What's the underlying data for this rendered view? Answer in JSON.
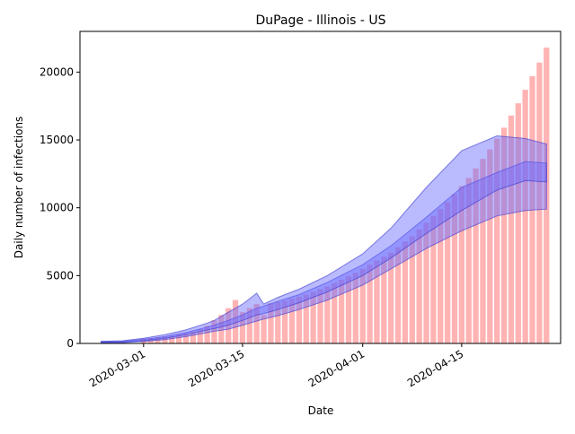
{
  "chart_data": {
    "type": "bar",
    "title": "DuPage - Illinois - US",
    "xlabel": "Date",
    "ylabel": "Daily number of infections",
    "x_ticks": [
      "2020-03-01",
      "2020-03-15",
      "2020-04-01",
      "2020-04-15"
    ],
    "y_ticks": [
      "0",
      "5000",
      "10000",
      "15000",
      "20000"
    ],
    "ylim": [
      0,
      23000
    ],
    "xlim": [
      "2020-02-21",
      "2020-04-29"
    ],
    "grid": false,
    "bar_color": "#ff9999",
    "band_color": "#6666ff",
    "bar_dates": [
      "2020-03-01",
      "2020-03-02",
      "2020-03-03",
      "2020-03-04",
      "2020-03-05",
      "2020-03-06",
      "2020-03-07",
      "2020-03-08",
      "2020-03-09",
      "2020-03-10",
      "2020-03-11",
      "2020-03-12",
      "2020-03-13",
      "2020-03-14",
      "2020-03-15",
      "2020-03-16",
      "2020-03-17",
      "2020-03-18",
      "2020-03-19",
      "2020-03-20",
      "2020-03-21",
      "2020-03-22",
      "2020-03-23",
      "2020-03-24",
      "2020-03-25",
      "2020-03-26",
      "2020-03-27",
      "2020-03-28",
      "2020-03-29",
      "2020-03-30",
      "2020-03-31",
      "2020-04-01",
      "2020-04-02",
      "2020-04-03",
      "2020-04-04",
      "2020-04-05",
      "2020-04-06",
      "2020-04-07",
      "2020-04-08",
      "2020-04-09",
      "2020-04-10",
      "2020-04-11",
      "2020-04-12",
      "2020-04-13",
      "2020-04-14",
      "2020-04-15",
      "2020-04-16",
      "2020-04-17",
      "2020-04-18",
      "2020-04-19",
      "2020-04-20",
      "2020-04-21",
      "2020-04-22",
      "2020-04-23",
      "2020-04-24",
      "2020-04-25",
      "2020-04-26"
    ],
    "values": [
      350,
      380,
      420,
      480,
      560,
      650,
      750,
      880,
      1050,
      1300,
      1700,
      2100,
      2600,
      3200,
      2300,
      2600,
      2900,
      2100,
      2950,
      3050,
      3150,
      3300,
      3450,
      3600,
      3800,
      4000,
      4200,
      4450,
      4700,
      4950,
      5200,
      5500,
      5800,
      6100,
      6400,
      6700,
      7100,
      7500,
      7900,
      8400,
      8900,
      9400,
      9900,
      10400,
      11000,
      11600,
      12200,
      12900,
      13600,
      14300,
      15100,
      15900,
      16800,
      17700,
      18700,
      19700,
      20700
    ],
    "bar_last": {
      "date": "2020-04-27",
      "value": 21800
    },
    "bands": [
      {
        "dates": [
          "2020-02-24",
          "2020-02-27",
          "2020-03-01",
          "2020-03-04",
          "2020-03-07",
          "2020-03-10",
          "2020-03-11",
          "2020-03-13",
          "2020-03-15",
          "2020-03-17",
          "2020-03-18",
          "2020-03-20",
          "2020-03-23",
          "2020-03-27",
          "2020-04-01",
          "2020-04-05",
          "2020-04-10",
          "2020-04-15",
          "2020-04-20",
          "2020-04-24",
          "2020-04-27"
        ],
        "lower": [
          50,
          60,
          150,
          280,
          500,
          800,
          900,
          1050,
          1350,
          1650,
          1800,
          2050,
          2500,
          3200,
          4300,
          5500,
          7000,
          8300,
          9400,
          9800,
          9900
        ],
        "upper": [
          130,
          150,
          300,
          500,
          800,
          1200,
          1350,
          1700,
          2100,
          2600,
          2750,
          3100,
          3600,
          4500,
          5800,
          7200,
          9300,
          11500,
          12600,
          13400,
          13300
        ]
      },
      {
        "dates": [
          "2020-02-24",
          "2020-02-27",
          "2020-03-01",
          "2020-03-04",
          "2020-03-07",
          "2020-03-10",
          "2020-03-11",
          "2020-03-13",
          "2020-03-15",
          "2020-03-17",
          "2020-03-18",
          "2020-03-20",
          "2020-03-23",
          "2020-03-27",
          "2020-04-01",
          "2020-04-05",
          "2020-04-10",
          "2020-04-15",
          "2020-04-20",
          "2020-04-24",
          "2020-04-27"
        ],
        "lower": [
          80,
          100,
          200,
          380,
          640,
          1000,
          1100,
          1350,
          1700,
          2100,
          2200,
          2500,
          3000,
          3800,
          5000,
          6300,
          8100,
          9800,
          11300,
          12000,
          11900
        ],
        "upper": [
          160,
          200,
          380,
          650,
          1000,
          1500,
          1700,
          2300,
          2900,
          3700,
          2900,
          3400,
          4000,
          5000,
          6600,
          8500,
          11500,
          14200,
          15300,
          15100,
          14700
        ]
      }
    ]
  }
}
